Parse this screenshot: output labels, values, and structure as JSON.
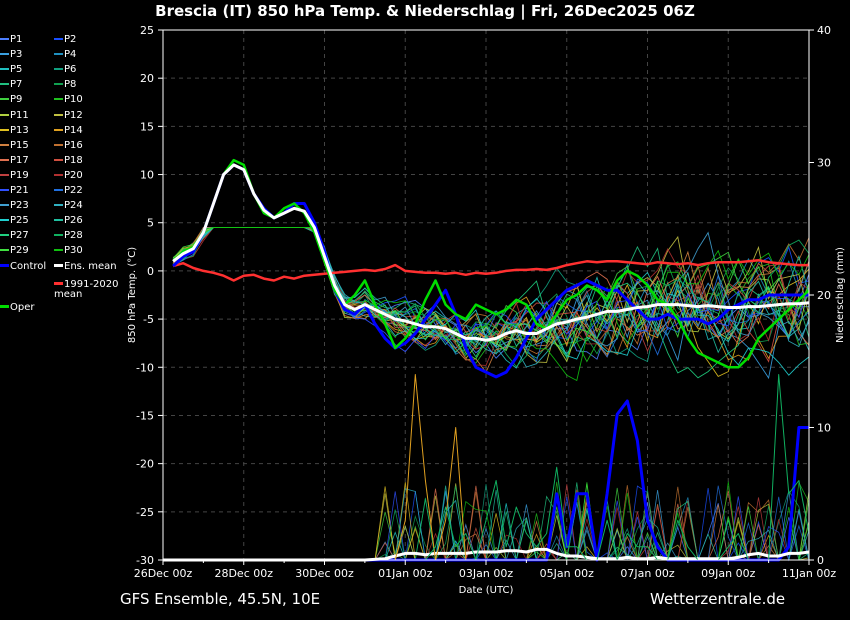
{
  "title": "Brescia  (IT)  850 hPa Temp. & Niederschlag | Fri, 26Dec2025 06Z",
  "footer": {
    "left": "GFS Ensemble, 45.5N, 10E",
    "right": "Wetterzentrale.de"
  },
  "colors": {
    "background": "#000000",
    "control": "#0000ff",
    "ens_mean": "#ffffff",
    "climate_mean": "#ff3030",
    "oper": "#00dd00",
    "grid": "#555555"
  },
  "legend": [
    {
      "label": "P1",
      "color": "#4d7fff"
    },
    {
      "label": "P2",
      "color": "#1a50ff"
    },
    {
      "label": "P3",
      "color": "#3aa0e0"
    },
    {
      "label": "P4",
      "color": "#1f90c0"
    },
    {
      "label": "P5",
      "color": "#20c0c0"
    },
    {
      "label": "P6",
      "color": "#10a080"
    },
    {
      "label": "P7",
      "color": "#20c080"
    },
    {
      "label": "P8",
      "color": "#10a050"
    },
    {
      "label": "P9",
      "color": "#40d040"
    },
    {
      "label": "P10",
      "color": "#20c020"
    },
    {
      "label": "P11",
      "color": "#b0d040"
    },
    {
      "label": "P12",
      "color": "#c0c040"
    },
    {
      "label": "P13",
      "color": "#e0c020"
    },
    {
      "label": "P14",
      "color": "#e0a020"
    },
    {
      "label": "P15",
      "color": "#d08040"
    },
    {
      "label": "P16",
      "color": "#c07030"
    },
    {
      "label": "P17",
      "color": "#e07050"
    },
    {
      "label": "P18",
      "color": "#d05040"
    },
    {
      "label": "P19",
      "color": "#c04040"
    },
    {
      "label": "P20",
      "color": "#b03030"
    },
    {
      "label": "P21",
      "color": "#3050ff"
    },
    {
      "label": "P22",
      "color": "#2070e0"
    },
    {
      "label": "P23",
      "color": "#40a0d0"
    },
    {
      "label": "P24",
      "color": "#30b0c0"
    },
    {
      "label": "P25",
      "color": "#20d0d0"
    },
    {
      "label": "P26",
      "color": "#20c0a0"
    },
    {
      "label": "P27",
      "color": "#20d080"
    },
    {
      "label": "P28",
      "color": "#10b060"
    },
    {
      "label": "P29",
      "color": "#40e040"
    },
    {
      "label": "P30",
      "color": "#10c010"
    },
    {
      "label": "Control",
      "color": "#0000ff"
    },
    {
      "label": "Ens. mean",
      "color": "#ffffff"
    },
    {
      "label": "1991-2020 mean",
      "color": "#ff3030"
    },
    {
      "label": "Oper",
      "color": "#00dd00"
    }
  ],
  "chart_data": {
    "type": "line",
    "xlabel": "Date (UTC)",
    "ylabel": "850 hPa Temp. (°C)",
    "y2label": "Niederschlag (mm)",
    "ylim": [
      -30,
      25
    ],
    "y2lim": [
      0,
      40
    ],
    "yticks": [
      "25",
      "20",
      "15",
      "10",
      "5",
      "0",
      "-5",
      "-10",
      "-15",
      "-20",
      "-25",
      "-30"
    ],
    "y2ticks": [
      "40",
      "30",
      "20",
      "10",
      "0"
    ],
    "xticks": [
      "26Dec 00z",
      "28Dec 00z",
      "30Dec 00z",
      "01Jan 00z",
      "03Jan 00z",
      "05Jan 00z",
      "07Jan 00z",
      "09Jan 00z",
      "11Jan 00z"
    ],
    "xlim_hours": [
      0,
      384
    ],
    "grid": true,
    "series": [
      {
        "name": "Oper",
        "kind": "temp",
        "x": [
          6,
          12,
          18,
          24,
          30,
          36,
          42,
          48,
          54,
          60,
          66,
          72,
          78,
          84,
          90,
          96,
          102,
          108,
          114,
          120,
          126,
          132,
          138,
          144,
          150,
          156,
          162,
          168,
          174,
          180,
          186,
          192,
          198,
          204,
          210,
          216,
          222,
          228,
          234,
          240,
          246,
          252,
          258,
          264,
          270,
          276,
          282,
          288,
          294,
          300,
          306,
          312,
          318,
          324,
          330,
          336,
          342,
          348,
          354,
          360,
          366,
          372,
          378,
          384
        ],
        "y": [
          1,
          2,
          2.5,
          4,
          7,
          10,
          11.5,
          11,
          8,
          6,
          5.5,
          6.5,
          7,
          6,
          4,
          1,
          -2,
          -3.5,
          -2.5,
          -1,
          -3.5,
          -5.5,
          -8,
          -7,
          -5.5,
          -3,
          -1,
          -3.5,
          -4.5,
          -5,
          -3.5,
          -4,
          -4.5,
          -4,
          -3,
          -3.5,
          -5.5,
          -6,
          -4.5,
          -3,
          -2.5,
          -1.5,
          -2,
          -3,
          -1,
          0,
          -0.5,
          -1.5,
          -3,
          -3.5,
          -5,
          -7,
          -8.5,
          -9,
          -9.5,
          -10,
          -10,
          -9,
          -7,
          -6,
          -5,
          -4,
          -3,
          -2
        ]
      },
      {
        "name": "Control",
        "kind": "temp",
        "x": [
          6,
          12,
          18,
          24,
          30,
          36,
          42,
          48,
          54,
          60,
          66,
          72,
          78,
          84,
          90,
          96,
          102,
          108,
          114,
          120,
          126,
          132,
          138,
          144,
          150,
          156,
          162,
          168,
          174,
          180,
          186,
          192,
          198,
          204,
          210,
          216,
          222,
          228,
          234,
          240,
          246,
          252,
          258,
          264,
          270,
          276,
          282,
          288,
          294,
          300,
          306,
          312,
          318,
          324,
          330,
          336,
          342,
          348,
          354,
          360,
          366,
          372,
          378,
          384
        ],
        "y": [
          0.5,
          1.5,
          2,
          4,
          7,
          10,
          11,
          10.5,
          8,
          6.5,
          5.5,
          6,
          7,
          7,
          5,
          2,
          -2,
          -4,
          -4.5,
          -3.5,
          -5.5,
          -7,
          -8,
          -7.5,
          -6.5,
          -5,
          -3.5,
          -2,
          -4.5,
          -8,
          -10,
          -10.5,
          -11,
          -10.5,
          -9,
          -7,
          -5,
          -4,
          -3,
          -2,
          -1.5,
          -1,
          -1.5,
          -2,
          -2,
          -3,
          -4,
          -5,
          -5,
          -4.5,
          -5,
          -5,
          -5,
          -5.5,
          -5,
          -4,
          -3.5,
          -3,
          -3,
          -2.5,
          -2.5,
          -2.5,
          -2.5,
          -2.5
        ]
      },
      {
        "name": "Ens. mean",
        "kind": "temp",
        "x": [
          6,
          12,
          18,
          24,
          30,
          36,
          42,
          48,
          54,
          60,
          66,
          72,
          78,
          84,
          90,
          96,
          102,
          108,
          114,
          120,
          126,
          132,
          138,
          144,
          150,
          156,
          162,
          168,
          174,
          180,
          186,
          192,
          198,
          204,
          210,
          216,
          222,
          228,
          234,
          240,
          246,
          252,
          258,
          264,
          270,
          276,
          282,
          288,
          294,
          300,
          306,
          312,
          318,
          324,
          330,
          336,
          342,
          348,
          354,
          360,
          366,
          372,
          378,
          384
        ],
        "y": [
          1,
          1.8,
          2.3,
          4,
          7,
          10,
          11,
          10.5,
          8,
          6.3,
          5.5,
          6,
          6.5,
          6.2,
          4.5,
          1.5,
          -1.5,
          -3.5,
          -4,
          -3.5,
          -4,
          -4.5,
          -5,
          -5.2,
          -5.5,
          -5.8,
          -5.8,
          -6,
          -6.5,
          -7,
          -7,
          -7.2,
          -7,
          -6.5,
          -6.2,
          -6.5,
          -6.5,
          -6,
          -5.5,
          -5.3,
          -5,
          -4.8,
          -4.5,
          -4.2,
          -4.2,
          -4,
          -3.8,
          -3.7,
          -3.5,
          -3.5,
          -3.5,
          -3.6,
          -3.7,
          -3.6,
          -3.7,
          -3.8,
          -3.8,
          -3.7,
          -3.7,
          -3.6,
          -3.5,
          -3.4,
          -3.4,
          -3.3
        ]
      },
      {
        "name": "1991-2020 mean",
        "kind": "temp",
        "x": [
          6,
          12,
          18,
          24,
          30,
          36,
          42,
          48,
          54,
          60,
          66,
          72,
          78,
          84,
          90,
          96,
          102,
          108,
          114,
          120,
          126,
          132,
          138,
          144,
          150,
          156,
          162,
          168,
          174,
          180,
          186,
          192,
          198,
          204,
          210,
          216,
          222,
          228,
          234,
          240,
          246,
          252,
          258,
          264,
          270,
          276,
          282,
          288,
          294,
          300,
          306,
          312,
          318,
          324,
          330,
          336,
          342,
          348,
          354,
          360,
          366,
          372,
          378,
          384
        ],
        "y": [
          0.5,
          0.8,
          0.3,
          0,
          -0.2,
          -0.5,
          -1,
          -0.5,
          -0.4,
          -0.8,
          -1,
          -0.6,
          -0.8,
          -0.5,
          -0.4,
          -0.3,
          -0.2,
          -0.1,
          0,
          0.1,
          0,
          0.2,
          0.6,
          0,
          -0.1,
          -0.2,
          -0.2,
          -0.3,
          -0.2,
          -0.4,
          -0.2,
          -0.3,
          -0.2,
          0,
          0.1,
          0.1,
          0.2,
          0.1,
          0.3,
          0.6,
          0.8,
          1,
          0.9,
          1,
          1,
          0.9,
          0.8,
          0.7,
          0.9,
          0.8,
          0.7,
          0.8,
          0.6,
          0.8,
          0.9,
          0.9,
          0.9,
          1,
          1.1,
          0.9,
          0.8,
          0.7,
          0.6,
          0.6
        ]
      },
      {
        "name": "Control",
        "kind": "precip",
        "x": [
          0,
          120,
          138,
          144,
          150,
          156,
          162,
          168,
          174,
          180,
          186,
          192,
          198,
          204,
          210,
          216,
          222,
          228,
          234,
          240,
          246,
          252,
          258,
          264,
          270,
          276,
          282,
          288,
          294,
          300,
          306,
          312,
          318,
          324,
          330,
          336,
          342,
          348,
          354,
          360,
          366,
          372,
          378,
          384
        ],
        "y": [
          0,
          0,
          0,
          0,
          0,
          0,
          0,
          0,
          0,
          0,
          0,
          0,
          0,
          0,
          0,
          0,
          0,
          0,
          5,
          1,
          5,
          5,
          0,
          5,
          11,
          12,
          9,
          3,
          1,
          0,
          0,
          0,
          0,
          0,
          0,
          0,
          0,
          0,
          0,
          0,
          0,
          1,
          10,
          10
        ]
      },
      {
        "name": "Ens. mean",
        "kind": "precip",
        "x": [
          0,
          120,
          132,
          138,
          144,
          150,
          156,
          162,
          168,
          174,
          180,
          186,
          192,
          198,
          204,
          210,
          216,
          222,
          228,
          234,
          240,
          246,
          252,
          258,
          264,
          270,
          276,
          282,
          288,
          294,
          300,
          306,
          312,
          318,
          324,
          330,
          336,
          342,
          348,
          354,
          360,
          366,
          372,
          378,
          384
        ],
        "y": [
          0,
          0,
          0.1,
          0.3,
          0.5,
          0.5,
          0.4,
          0.5,
          0.5,
          0.5,
          0.5,
          0.6,
          0.6,
          0.6,
          0.7,
          0.7,
          0.6,
          0.8,
          0.8,
          0.5,
          0.3,
          0.3,
          0.2,
          0.1,
          0.1,
          0.1,
          0.2,
          0.1,
          0.1,
          0.2,
          0.1,
          0.1,
          0.1,
          0.1,
          0.1,
          0.1,
          0.1,
          0.2,
          0.4,
          0.5,
          0.3,
          0.3,
          0.5,
          0.5,
          0.6
        ]
      },
      {
        "name": "P14",
        "kind": "precip",
        "x": [
          0,
          132,
          138,
          144,
          150,
          156,
          162,
          168,
          174,
          180,
          186,
          192,
          198,
          204,
          384
        ],
        "y": [
          0,
          0,
          0,
          3,
          14,
          6,
          0,
          3,
          10,
          0,
          0,
          0,
          0,
          0,
          0
        ]
      },
      {
        "name": "P28",
        "kind": "precip",
        "x": [
          0,
          150,
          156,
          162,
          168,
          174,
          180,
          186,
          192,
          198,
          204,
          210,
          216,
          222,
          228,
          234,
          240,
          246,
          252,
          258,
          264,
          270,
          276,
          282,
          288,
          294,
          300,
          306,
          312,
          318,
          324,
          330,
          336,
          342,
          348,
          354,
          360,
          366,
          372,
          378,
          384
        ],
        "y": [
          0,
          0,
          0,
          1,
          4,
          1,
          2,
          0,
          3,
          6,
          1,
          4,
          2,
          1,
          2,
          7,
          1,
          1,
          0,
          0,
          3,
          0,
          2,
          1,
          1,
          0,
          0,
          3,
          1,
          0,
          0,
          0,
          1,
          2,
          0,
          0,
          0,
          14,
          5,
          6,
          2
        ]
      }
    ]
  }
}
